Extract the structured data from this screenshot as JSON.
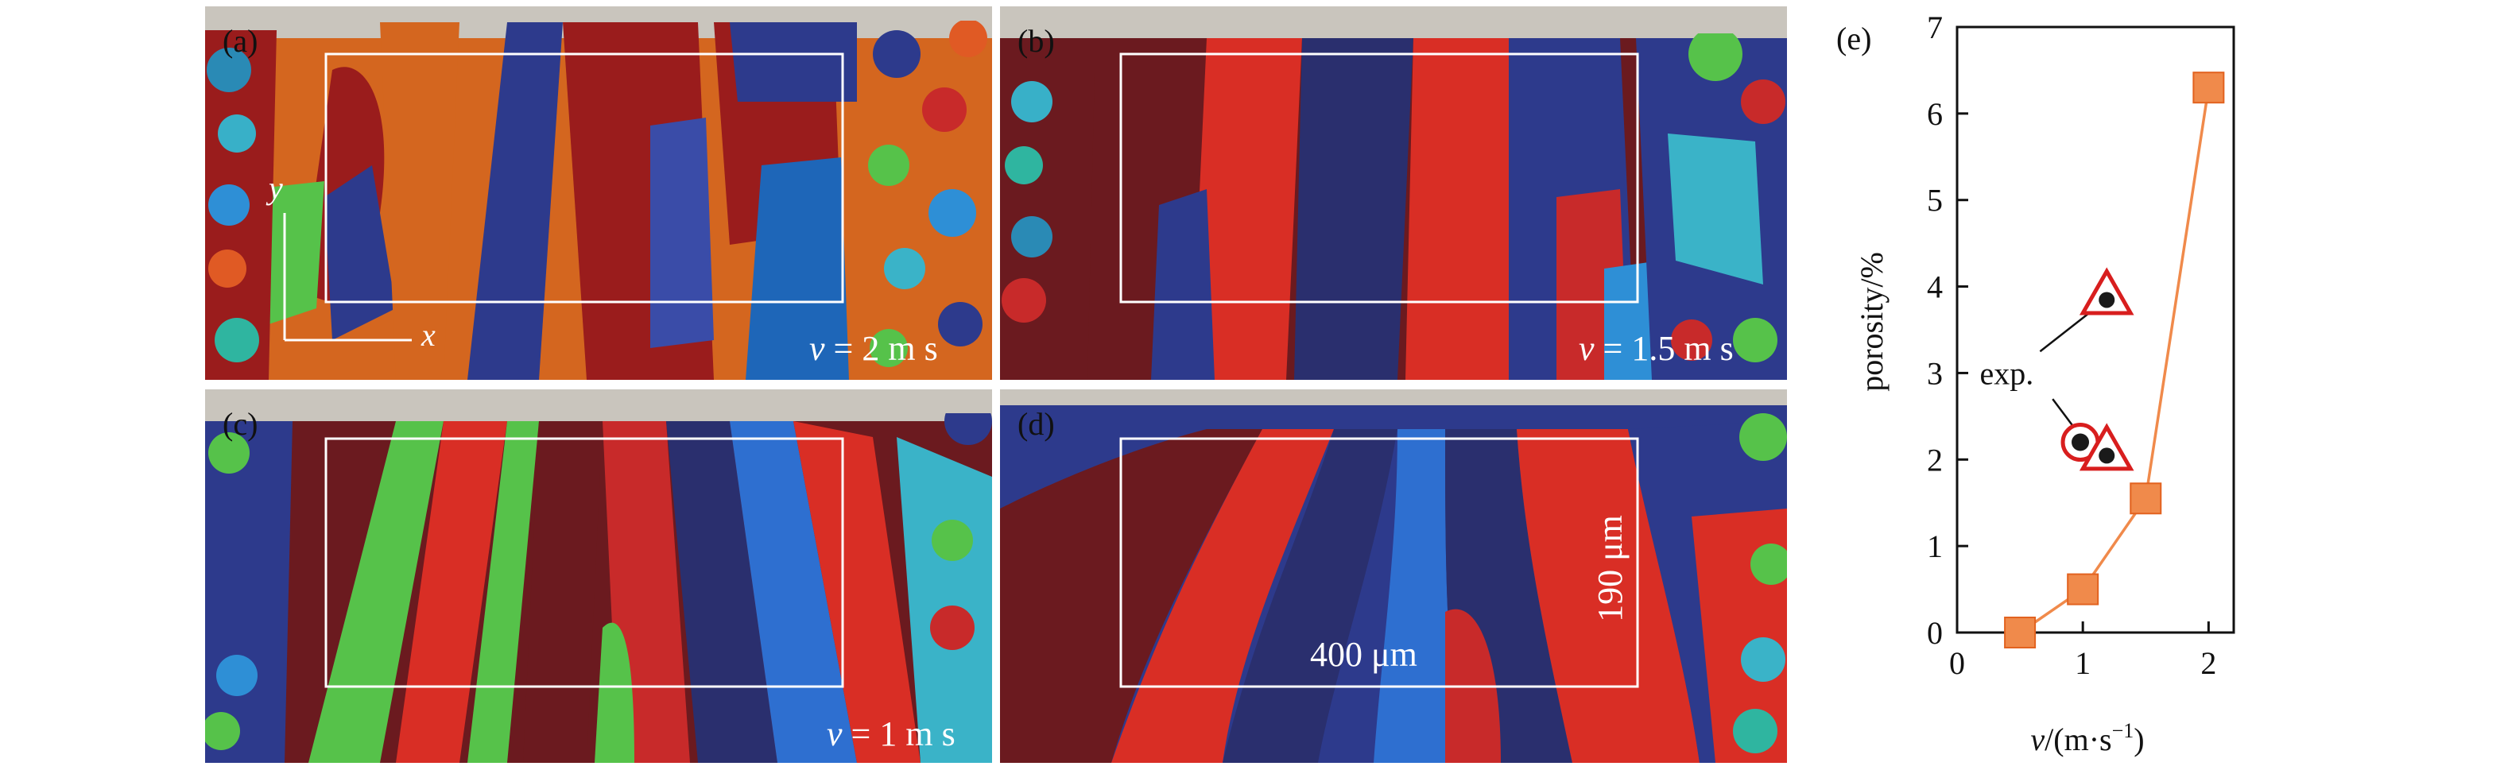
{
  "panels": [
    {
      "label": "(a)",
      "velocity_prefix": "v",
      "velocity_rest": " = 2 m s",
      "axis_x": "x",
      "axis_y": "y"
    },
    {
      "label": "(b)",
      "velocity_prefix": "v",
      "velocity_rest": " = 1.5 m s"
    },
    {
      "label": "(c)",
      "velocity_prefix": "v",
      "velocity_rest": " = 1 m s"
    },
    {
      "label": "(d)",
      "scale_x": "400 μm",
      "scale_y": "190 μm"
    }
  ],
  "chart_data": {
    "type": "line",
    "panel_label": "(e)",
    "xlabel_var": "v",
    "xlabel_unit": "/(m·s",
    "xlabel_exp": "−1",
    "xlabel_close": ")",
    "ylabel": "porosity/%",
    "xlim": [
      0,
      2.2
    ],
    "ylim": [
      0,
      7
    ],
    "xticks": [
      0,
      1,
      2
    ],
    "yticks": [
      0,
      1,
      2,
      3,
      4,
      5,
      6,
      7
    ],
    "series": [
      {
        "x": [
          0.5,
          1.0,
          1.5,
          2.0
        ],
        "y": [
          0.0,
          0.5,
          1.55,
          6.3
        ],
        "color": "#f08a4b",
        "marker": "square"
      }
    ],
    "annotation": "exp.",
    "colors": {
      "line": "#f08a4b",
      "marker_edge": "#e2621f",
      "marker_border": "#d81e1e"
    }
  }
}
